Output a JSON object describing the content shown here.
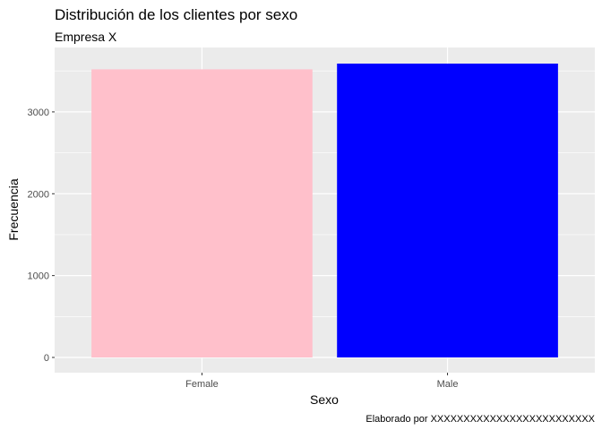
{
  "chart_data": {
    "type": "bar",
    "title": "Distribución de los clientes por sexo",
    "subtitle": "Empresa X",
    "caption": "Elaborado por XXXXXXXXXXXXXXXXXXXXXXXXX",
    "xlabel": "Sexo",
    "ylabel": "Frecuencia",
    "categories": [
      "Female",
      "Male"
    ],
    "values": [
      3520,
      3590
    ],
    "colors": [
      "#ffc0cb",
      "#0000ff"
    ],
    "ylim": [
      0,
      3590
    ],
    "yticks": [
      0,
      1000,
      2000,
      3000
    ],
    "ytick_labels": [
      "0",
      "1000",
      "2000",
      "3000"
    ],
    "panel_background": "#ebebeb",
    "grid_color": "#ffffff",
    "grid": true,
    "legend": "none"
  }
}
